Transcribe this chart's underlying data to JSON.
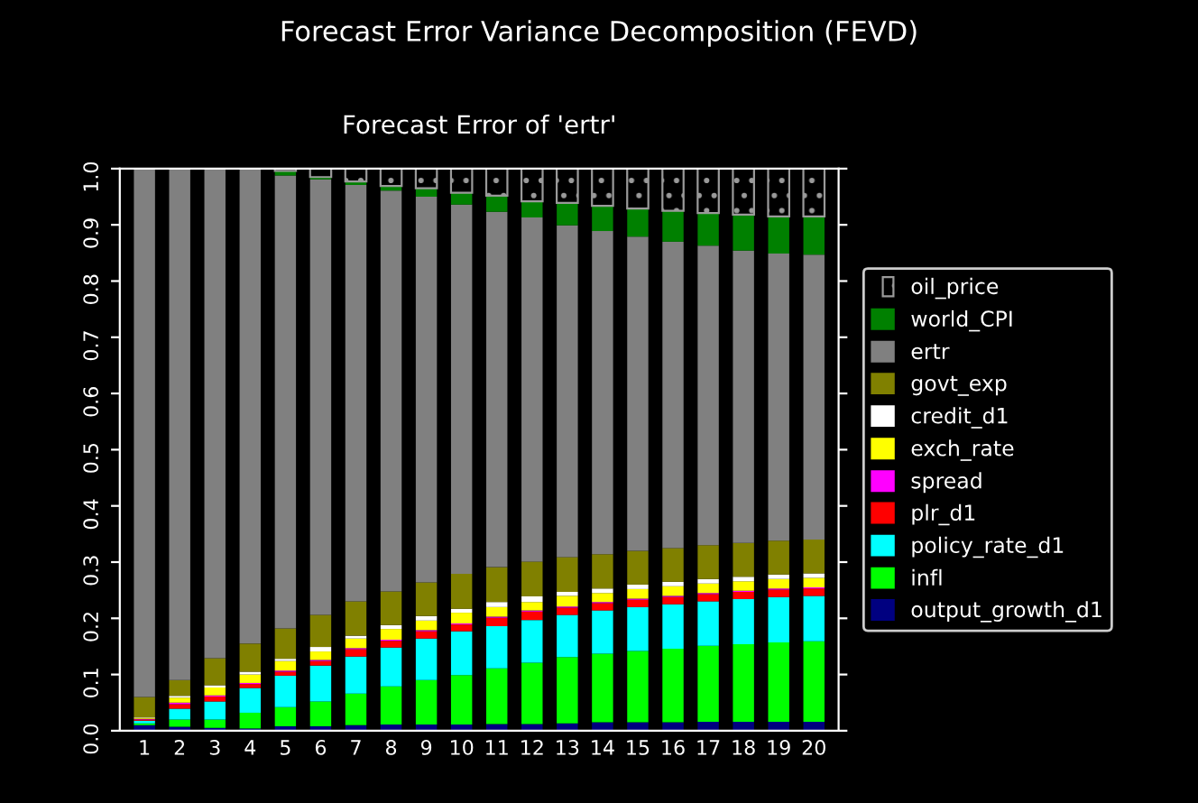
{
  "chart_data": {
    "type": "bar",
    "stacked": true,
    "title": "Forecast Error Variance Decomposition (FEVD)",
    "subtitle": "Forecast Error of 'ertr'",
    "categories": [
      "1",
      "2",
      "3",
      "4",
      "5",
      "6",
      "7",
      "8",
      "9",
      "10",
      "11",
      "12",
      "13",
      "14",
      "15",
      "16",
      "17",
      "18",
      "19",
      "20"
    ],
    "series": [
      {
        "name": "output_growth_d1",
        "color": "#000080",
        "values": [
          0.01,
          0.007,
          0.005,
          0.004,
          0.008,
          0.008,
          0.01,
          0.011,
          0.011,
          0.011,
          0.012,
          0.012,
          0.013,
          0.015,
          0.015,
          0.015,
          0.016,
          0.016,
          0.016,
          0.016
        ]
      },
      {
        "name": "infl",
        "color": "#00ff00",
        "values": [
          0.003,
          0.013,
          0.015,
          0.028,
          0.034,
          0.044,
          0.056,
          0.068,
          0.079,
          0.088,
          0.099,
          0.109,
          0.118,
          0.122,
          0.127,
          0.131,
          0.135,
          0.138,
          0.141,
          0.143
        ]
      },
      {
        "name": "policy_rate_d1",
        "color": "#00ffff",
        "values": [
          0.005,
          0.019,
          0.032,
          0.044,
          0.056,
          0.064,
          0.066,
          0.069,
          0.074,
          0.078,
          0.075,
          0.076,
          0.075,
          0.077,
          0.078,
          0.079,
          0.079,
          0.08,
          0.081,
          0.081
        ]
      },
      {
        "name": "plr_d1",
        "color": "#ff0000",
        "values": [
          0.002,
          0.008,
          0.009,
          0.007,
          0.007,
          0.008,
          0.013,
          0.012,
          0.013,
          0.012,
          0.015,
          0.015,
          0.013,
          0.013,
          0.013,
          0.013,
          0.013,
          0.013,
          0.013,
          0.013
        ]
      },
      {
        "name": "spread",
        "color": "#ff00ff",
        "values": [
          0.001,
          0.003,
          0.002,
          0.002,
          0.002,
          0.002,
          0.002,
          0.002,
          0.002,
          0.002,
          0.002,
          0.002,
          0.002,
          0.002,
          0.002,
          0.002,
          0.002,
          0.002,
          0.002,
          0.002
        ]
      },
      {
        "name": "exch_rate",
        "color": "#ffff00",
        "values": [
          0.002,
          0.009,
          0.014,
          0.015,
          0.017,
          0.015,
          0.017,
          0.019,
          0.017,
          0.019,
          0.017,
          0.015,
          0.019,
          0.016,
          0.017,
          0.017,
          0.017,
          0.017,
          0.017,
          0.017
        ]
      },
      {
        "name": "credit_d1",
        "color": "#ffffff",
        "values": [
          0.001,
          0.003,
          0.004,
          0.005,
          0.004,
          0.008,
          0.005,
          0.007,
          0.008,
          0.007,
          0.009,
          0.01,
          0.007,
          0.008,
          0.008,
          0.008,
          0.008,
          0.008,
          0.008,
          0.008
        ]
      },
      {
        "name": "govt_exp",
        "color": "#808000",
        "values": [
          0.036,
          0.028,
          0.048,
          0.05,
          0.054,
          0.057,
          0.061,
          0.06,
          0.06,
          0.062,
          0.062,
          0.062,
          0.062,
          0.061,
          0.06,
          0.06,
          0.06,
          0.06,
          0.06,
          0.06
        ]
      },
      {
        "name": "ertr",
        "color": "#808080",
        "values": [
          0.94,
          0.91,
          0.871,
          0.845,
          0.806,
          0.775,
          0.741,
          0.713,
          0.686,
          0.657,
          0.632,
          0.612,
          0.59,
          0.575,
          0.559,
          0.545,
          0.533,
          0.52,
          0.511,
          0.507
        ]
      },
      {
        "name": "world_CPI",
        "color": "#008000",
        "values": [
          0,
          0,
          0,
          0,
          0.008,
          0.004,
          0.006,
          0.008,
          0.015,
          0.021,
          0.029,
          0.029,
          0.04,
          0.045,
          0.05,
          0.055,
          0.058,
          0.064,
          0.066,
          0.068
        ]
      },
      {
        "name": "oil_price",
        "color": "#000000",
        "values": [
          0,
          0,
          0,
          0,
          0.004,
          0.015,
          0.023,
          0.031,
          0.035,
          0.043,
          0.048,
          0.058,
          0.061,
          0.066,
          0.071,
          0.075,
          0.079,
          0.082,
          0.085,
          0.085
        ]
      }
    ],
    "ylim": [
      0,
      1
    ],
    "yticks": [
      {
        "value": 0,
        "label": "0.0"
      },
      {
        "value": 0.1,
        "label": "0.1"
      },
      {
        "value": 0.2,
        "label": "0.2"
      },
      {
        "value": 0.3,
        "label": "0.3"
      },
      {
        "value": 0.4,
        "label": "0.4"
      },
      {
        "value": 0.5,
        "label": "0.5"
      },
      {
        "value": 0.6,
        "label": "0.6"
      },
      {
        "value": 0.7,
        "label": "0.7"
      },
      {
        "value": 0.8,
        "label": "0.8"
      },
      {
        "value": 0.9,
        "label": "0.9"
      },
      {
        "value": 1,
        "label": "1.0"
      }
    ],
    "grid": false,
    "legend": "right"
  }
}
